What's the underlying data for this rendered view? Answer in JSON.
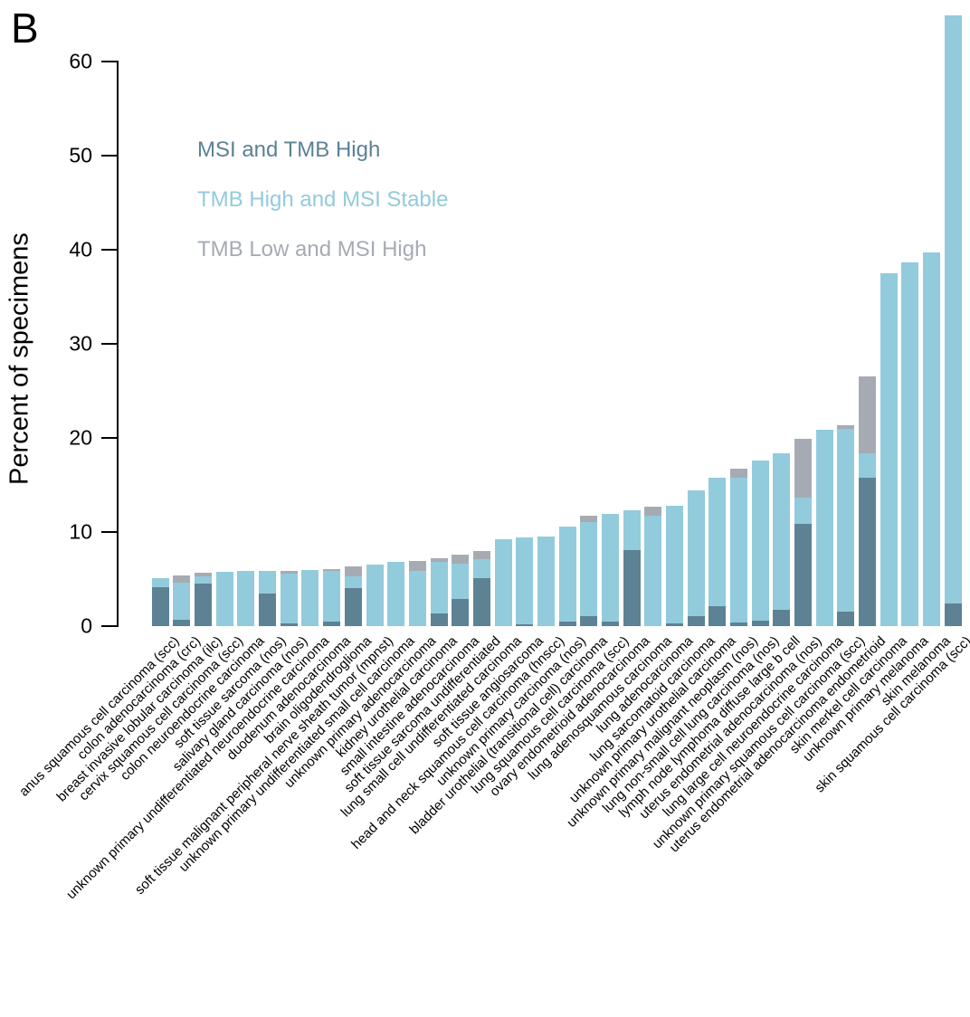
{
  "panel_label": "B",
  "y_axis": {
    "label": "Percent of specimens",
    "ticks": [
      0,
      10,
      20,
      30,
      40,
      50,
      60
    ]
  },
  "legend": [
    {
      "label": "MSI and TMB High",
      "color": "#5c8294"
    },
    {
      "label": "TMB High and MSI Stable",
      "color": "#92cbdc"
    },
    {
      "label": "TMB Low and MSI High",
      "color": "#a6abb3"
    }
  ],
  "chart_data": {
    "type": "bar",
    "stacked": true,
    "title": "",
    "xlabel": "",
    "ylabel": "Percent of specimens",
    "ylim": [
      0,
      65
    ],
    "grid": false,
    "legend_position": "upper-left-inside",
    "categories": [
      "anus squamous cell carcinoma (scc)",
      "colon adenocarcinoma (crc)",
      "breast invasive lobular carcinoma (ilc)",
      "cervix squamous cell carcinoma (scc)",
      "colon neuroendocrine carcinoma",
      "soft tissue sarcoma (nos)",
      "salivary gland carcinoma (nos)",
      "unknown primary undifferentiated neuroendocrine carcinoma",
      "duodenum adenocarcinoma",
      "brain oligodendroglioma",
      "soft tissue malignant peripheral nerve sheath tumor (mpnst)",
      "unknown primary undifferentiated small cell carcinoma",
      "unknown primary adenocarcinoma",
      "kidney urothelial carcinoma",
      "small intestine adenocarcinoma",
      "soft tissue sarcoma undifferentiated",
      "lung small cell undifferentiated carcinoma",
      "soft tissue angiosarcoma",
      "head and neck squamous cell carcinoma (hnscc)",
      "unknown primary carcinoma (nos)",
      "bladder urothelial (transitional cell) carcinoma",
      "lung squamous cell carcinoma (scc)",
      "ovary endometrioid adenocarcinoma",
      "lung adenosquamous carcinoma",
      "lung adenocarcinoma",
      "lung sarcomatoid carcinoma",
      "unknown primary urothelial carcinoma",
      "unknown primary malignant neoplasm (nos)",
      "lung non-small cell lung carcinoma (nos)",
      "lymph node lymphoma diffuse large b cell",
      "uterus endometrial adenocarcinoma (nos)",
      "lung large cell neuroendocrine carcinoma",
      "unknown primary squamous cell carcinoma (scc)",
      "uterus endometrial adenocarcinoma endometrioid",
      "skin merkel cell carcinoma",
      "unknown primary melanoma",
      "skin melanoma",
      "skin squamous cell carcinoma (scc)"
    ],
    "series": [
      {
        "name": "MSI and TMB High",
        "color": "#5c8294",
        "values": [
          4.1,
          0.65,
          4.5,
          0,
          0,
          3.45,
          0.3,
          0,
          0.5,
          4.0,
          0,
          0,
          0,
          1.35,
          2.85,
          5.05,
          0,
          0.2,
          0,
          0.5,
          1.1,
          0.5,
          8.1,
          0,
          0.25,
          1.1,
          2.1,
          0.4,
          0.6,
          1.7,
          10.9,
          0,
          1.55,
          15.75,
          0,
          0,
          0,
          2.4
        ]
      },
      {
        "name": "TMB High and MSI Stable",
        "color": "#92cbdc",
        "values": [
          1.0,
          3.95,
          0.8,
          5.75,
          5.85,
          2.4,
          5.3,
          5.95,
          5.35,
          1.25,
          6.55,
          6.85,
          5.9,
          5.45,
          3.8,
          2.1,
          9.25,
          9.2,
          9.55,
          10.05,
          10.0,
          11.4,
          4.2,
          11.75,
          12.5,
          13.35,
          13.7,
          15.4,
          17.0,
          16.7,
          2.8,
          20.9,
          19.4,
          2.6,
          37.5,
          38.7,
          39.7,
          62.5
        ]
      },
      {
        "name": "TMB Low and MSI High",
        "color": "#a6abb3",
        "values": [
          0,
          0.75,
          0.35,
          0,
          0,
          0,
          0.3,
          0,
          0.25,
          1.1,
          0,
          0,
          1.0,
          0.4,
          0.95,
          0.85,
          0,
          0,
          0,
          0,
          0.65,
          0,
          0,
          0.95,
          0,
          0,
          0,
          0.9,
          0,
          0,
          6.2,
          0,
          0.4,
          8.2,
          0,
          0,
          0,
          0
        ]
      }
    ]
  }
}
